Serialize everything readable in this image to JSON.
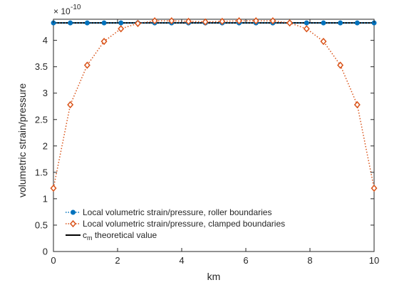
{
  "chart_data": {
    "type": "line",
    "title": "",
    "xlabel": "km",
    "ylabel": "volumetric strain/pressure",
    "xlim": [
      0,
      10
    ],
    "ylim": [
      0,
      4.4
    ],
    "y_exponent_label": "× 10",
    "y_exponent_value": "-10",
    "x_ticks": [
      "0",
      "2",
      "4",
      "6",
      "8",
      "10"
    ],
    "y_ticks": [
      "0",
      "0.5",
      "1",
      "1.5",
      "2",
      "2.5",
      "3",
      "3.5",
      "4"
    ],
    "grid": false,
    "legend_position": "bottom-left",
    "series": [
      {
        "name": "Local volumetric strain/pressure, roller boundaries",
        "color": "#0072BD",
        "marker": "circle",
        "line_style": "dotted",
        "x": [
          0,
          0.526,
          1.053,
          1.579,
          2.105,
          2.632,
          3.158,
          3.684,
          4.211,
          4.737,
          5.263,
          5.789,
          6.316,
          6.842,
          7.368,
          7.895,
          8.421,
          8.947,
          9.474,
          10
        ],
        "y": [
          4.33,
          4.33,
          4.33,
          4.33,
          4.33,
          4.33,
          4.33,
          4.33,
          4.33,
          4.33,
          4.33,
          4.33,
          4.33,
          4.33,
          4.33,
          4.33,
          4.33,
          4.33,
          4.33,
          4.33
        ]
      },
      {
        "name": "Local volumetric strain/pressure, clamped boundaries",
        "color": "#D95319",
        "marker": "diamond",
        "line_style": "dotted",
        "x": [
          0,
          0.526,
          1.053,
          1.579,
          2.105,
          2.632,
          3.158,
          3.684,
          4.211,
          4.737,
          5.263,
          5.789,
          6.316,
          6.842,
          7.368,
          7.895,
          8.421,
          8.947,
          9.474,
          10
        ],
        "y": [
          1.2,
          2.78,
          3.53,
          3.98,
          4.22,
          4.32,
          4.37,
          4.37,
          4.36,
          4.35,
          4.36,
          4.37,
          4.37,
          4.37,
          4.33,
          4.22,
          3.98,
          3.53,
          2.78,
          1.2
        ]
      },
      {
        "name_main": "c",
        "name_sub": "m",
        "name_rest": " theoretical value",
        "color": "#000000",
        "marker": "none",
        "line_style": "solid",
        "x": [
          0,
          10
        ],
        "y": [
          4.33,
          4.33
        ]
      }
    ]
  }
}
